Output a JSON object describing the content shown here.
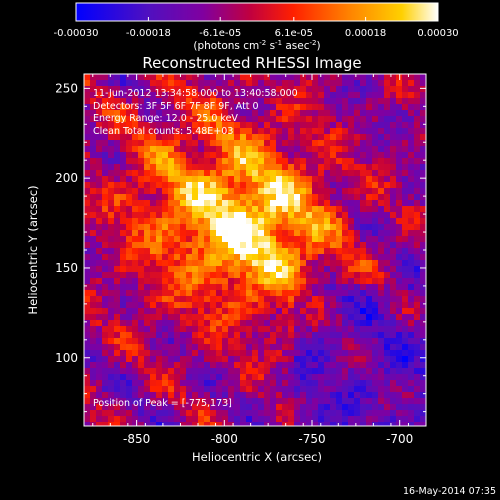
{
  "chart_data": {
    "type": "heatmap",
    "title": "Reconstructed RHESSI Image",
    "xlabel": "Heliocentric X (arcsec)",
    "ylabel": "Heliocentric Y (arcsec)",
    "x_ticks": [
      "-850",
      "-800",
      "-750",
      "-700"
    ],
    "x_tick_values": [
      -850,
      -800,
      -750,
      -700
    ],
    "y_ticks": [
      "100",
      "150",
      "200",
      "250"
    ],
    "y_tick_values": [
      100,
      150,
      200,
      250
    ],
    "xlim": [
      -880,
      -685
    ],
    "ylim": [
      62,
      258
    ],
    "colorbar": {
      "tick_labels": [
        "-0.00030",
        "-0.00018",
        "-6.1e-05",
        "6.1e-05",
        "0.00018",
        "0.00030"
      ],
      "tick_values": [
        -0.0003,
        -0.00018,
        -6.1e-05,
        6.1e-05,
        0.00018,
        0.0003
      ],
      "range": [
        -0.0003,
        0.0003
      ],
      "colors": [
        "#0000ff",
        "#5010c0",
        "#8000a0",
        "#c00040",
        "#ff2000",
        "#ff8000",
        "#ffd000",
        "#ffffff"
      ]
    },
    "units_label": "(photons cm",
    "units_sup1": "-2",
    "units_mid": " s",
    "units_sup2": "-1",
    "units_end": " asec",
    "units_sup3": "-2",
    "units_close": ")",
    "annotations": [
      "11-Jun-2012 13:34:58.000 to 13:40:58.000",
      "Detectors: 3F 5F 6F 7F 8F 9F, Att 0",
      "Energy Range: 12.0 - 25.0 keV",
      "Clean     Total counts: 5.48E+03"
    ],
    "peak_label": "Position of Peak = [-775,173]",
    "peak_position": [
      -775,
      173
    ]
  },
  "footer_date": "16-May-2014 07:35"
}
